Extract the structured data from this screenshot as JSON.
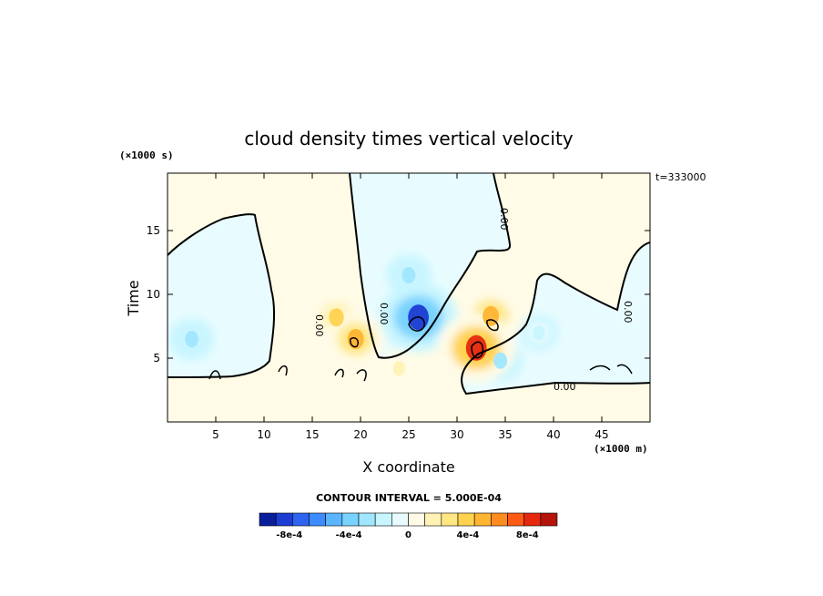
{
  "chart_data": {
    "type": "heatmap",
    "title": "cloud density times vertical velocity",
    "xlabel": "X coordinate",
    "ylabel": "Time",
    "x_unit": "(×1000 m)",
    "y_unit": "(×1000 s)",
    "time_stamp": "t=333000",
    "xlim": [
      0,
      50
    ],
    "ylim": [
      0,
      19.5
    ],
    "x_ticks": [
      5,
      10,
      15,
      20,
      25,
      30,
      35,
      40,
      45
    ],
    "y_ticks": [
      5,
      10,
      15
    ],
    "contour_interval_label": "CONTOUR INTERVAL = 5.000E-04",
    "contour_label": "0.00",
    "colorbar": {
      "min": -0.001,
      "max": 0.001,
      "colors": [
        "#0a1e9b",
        "#1c3cd2",
        "#2e64f0",
        "#3c8cff",
        "#5ab4ff",
        "#78d2ff",
        "#a0e6ff",
        "#c8f5ff",
        "#e8fcff",
        "#fffbe6",
        "#fff2b4",
        "#ffe682",
        "#ffd250",
        "#ffb432",
        "#ff8c1e",
        "#ff5a14",
        "#e6280f",
        "#b4140a"
      ],
      "tick_values": [
        -0.0008,
        -0.0004,
        0,
        0.0004,
        0.0008
      ],
      "tick_labels": [
        "-8e-4",
        "-4e-4",
        "0",
        "4e-4",
        "8e-4"
      ]
    },
    "features": [
      {
        "x": 26,
        "y": 8.2,
        "value": -0.0008
      },
      {
        "x": 25,
        "y": 11.5,
        "value": -0.0003
      },
      {
        "x": 2.5,
        "y": 6.5,
        "value": -0.0003
      },
      {
        "x": 38.5,
        "y": 7.0,
        "value": -0.0002
      },
      {
        "x": 34.5,
        "y": 4.8,
        "value": -0.0003
      },
      {
        "x": 17.5,
        "y": 8.2,
        "value": 0.0004
      },
      {
        "x": 19.5,
        "y": 6.5,
        "value": 0.0005
      },
      {
        "x": 33.5,
        "y": 8.3,
        "value": 0.0005
      },
      {
        "x": 32,
        "y": 5.8,
        "value": 0.0008
      },
      {
        "x": 24,
        "y": 4.2,
        "value": 0.0002
      }
    ]
  }
}
